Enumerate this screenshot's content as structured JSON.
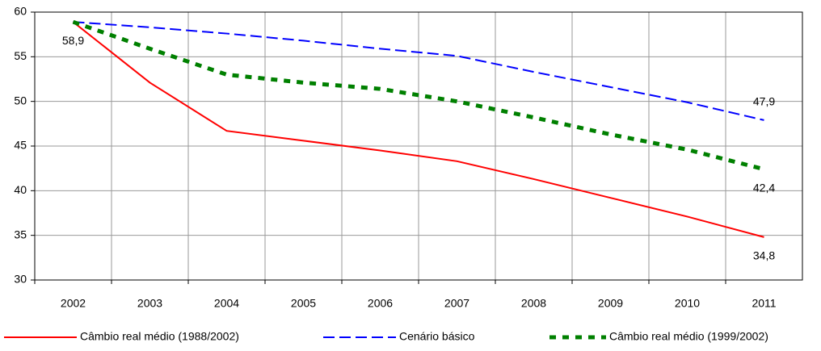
{
  "chart_data": {
    "type": "line",
    "categories": [
      "2002",
      "2003",
      "2004",
      "2005",
      "2006",
      "2007",
      "2008",
      "2009",
      "2010",
      "2011"
    ],
    "series": [
      {
        "name": "Câmbio real médio (1988/2002)",
        "color": "#ff0000",
        "dash": "solid",
        "values": [
          58.9,
          52.1,
          46.7,
          45.6,
          44.5,
          43.3,
          41.3,
          39.2,
          37.1,
          34.8
        ],
        "value_labels": [
          "58,9",
          null,
          null,
          null,
          null,
          null,
          null,
          null,
          null,
          "34,8"
        ]
      },
      {
        "name": "Cenário básico",
        "color": "#0000ff",
        "dash": "dashed",
        "values": [
          58.9,
          58.3,
          57.6,
          56.8,
          55.9,
          55.1,
          53.3,
          51.6,
          49.9,
          47.9
        ],
        "value_labels": [
          null,
          null,
          null,
          null,
          null,
          null,
          null,
          null,
          null,
          "47,9"
        ]
      },
      {
        "name": "Câmbio real médio (1999/2002)",
        "color": "#008000",
        "dash": "dotted",
        "values": [
          58.9,
          55.9,
          53.0,
          52.1,
          51.4,
          50.0,
          48.2,
          46.3,
          44.6,
          42.4
        ],
        "value_labels": [
          null,
          null,
          null,
          null,
          null,
          null,
          null,
          null,
          null,
          "42,4"
        ]
      }
    ],
    "ylim": [
      30,
      60
    ],
    "yticks": [
      30,
      35,
      40,
      45,
      50,
      55,
      60
    ],
    "grid": true,
    "legend": "bottom"
  }
}
